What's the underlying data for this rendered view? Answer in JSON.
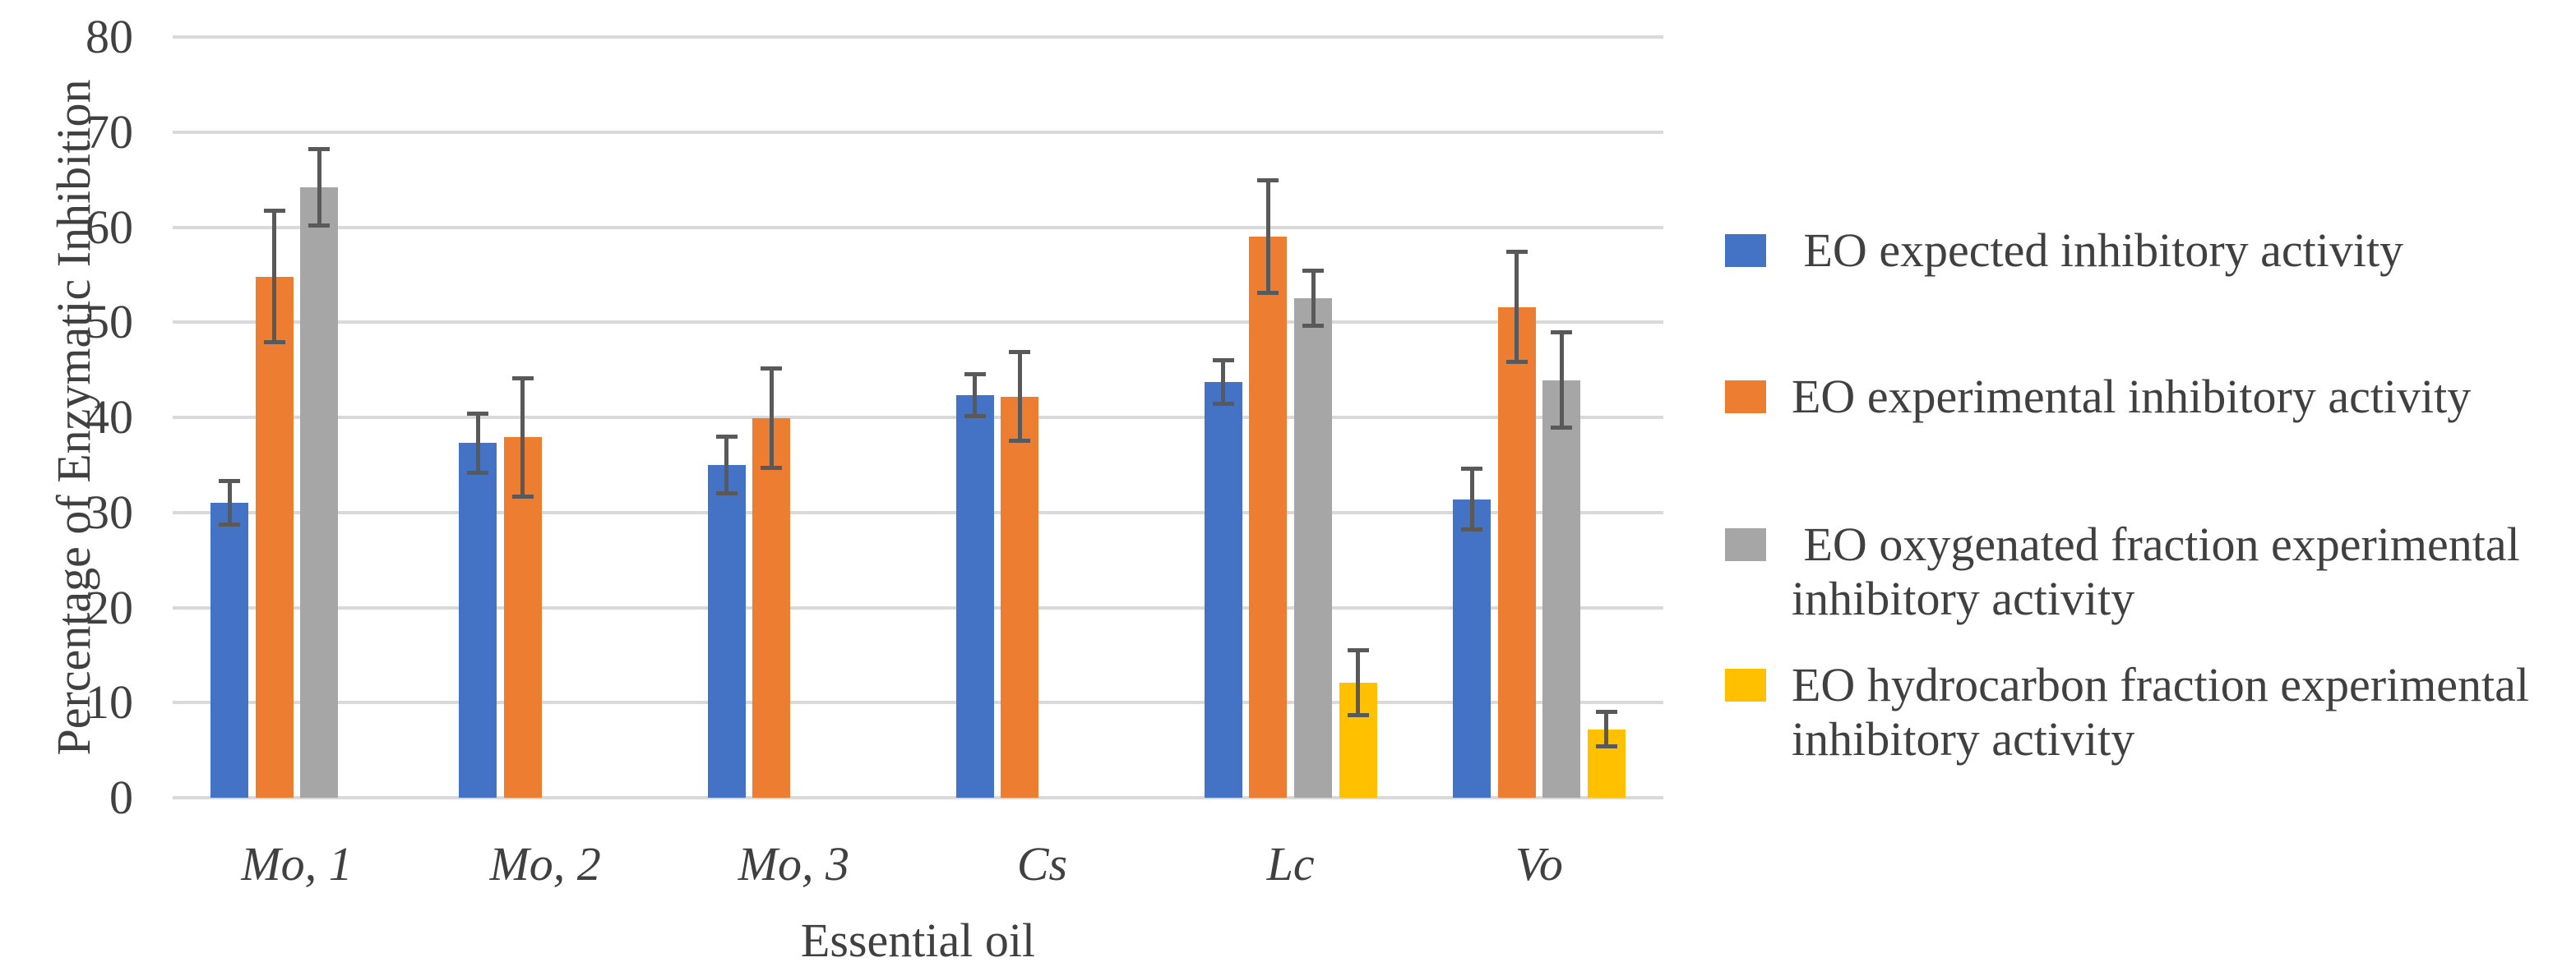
{
  "chart_data": {
    "type": "bar",
    "title": "",
    "xlabel": "Essential oil",
    "ylabel": "Percentage of Enzymatic Inhibition",
    "ylim": [
      0,
      80
    ],
    "yticks": [
      0,
      10,
      20,
      30,
      40,
      50,
      60,
      70,
      80
    ],
    "grid": "horizontal",
    "legend_position": "right",
    "categories": [
      "Mo, 1",
      "Mo, 2",
      "Mo, 3",
      "Cs",
      "Lc",
      "Vo"
    ],
    "series": [
      {
        "name": "EO expected inhibitory activity",
        "label": " EO expected inhibitory activity",
        "color": "#4472C4",
        "values": [
          31.0,
          37.3,
          35.0,
          42.3,
          43.7,
          31.4
        ],
        "errors": [
          2.3,
          3.1,
          3.0,
          2.2,
          2.3,
          3.2
        ]
      },
      {
        "name": "EO experimental inhibitory activity",
        "label": "EO experimental inhibitory activity",
        "color": "#ED7D31",
        "values": [
          54.8,
          37.9,
          39.9,
          42.2,
          59.0,
          51.6
        ],
        "errors": [
          6.9,
          6.2,
          5.2,
          4.7,
          5.9,
          5.8
        ]
      },
      {
        "name": "EO oxygenated fraction experimental inhibitory activity",
        "label": " EO oxygenated fraction experimental\ninhibitory activity",
        "color": "#A6A6A6",
        "values": [
          64.2,
          null,
          null,
          null,
          52.5,
          43.9
        ],
        "errors": [
          4.0,
          null,
          null,
          null,
          2.9,
          5.0
        ]
      },
      {
        "name": "EO hydrocarbon fraction experimental inhibitory activity",
        "label": "EO hydrocarbon fraction experimental\ninhibitory activity",
        "color": "#FFC000",
        "values": [
          null,
          null,
          null,
          null,
          12.1,
          7.2
        ],
        "errors": [
          null,
          null,
          null,
          null,
          3.4,
          1.8
        ]
      }
    ],
    "style": {
      "grid_color": "#D9D9D9",
      "error_bar_color": "#595959",
      "text_color": "#404040",
      "background": "#FFFFFF"
    }
  }
}
